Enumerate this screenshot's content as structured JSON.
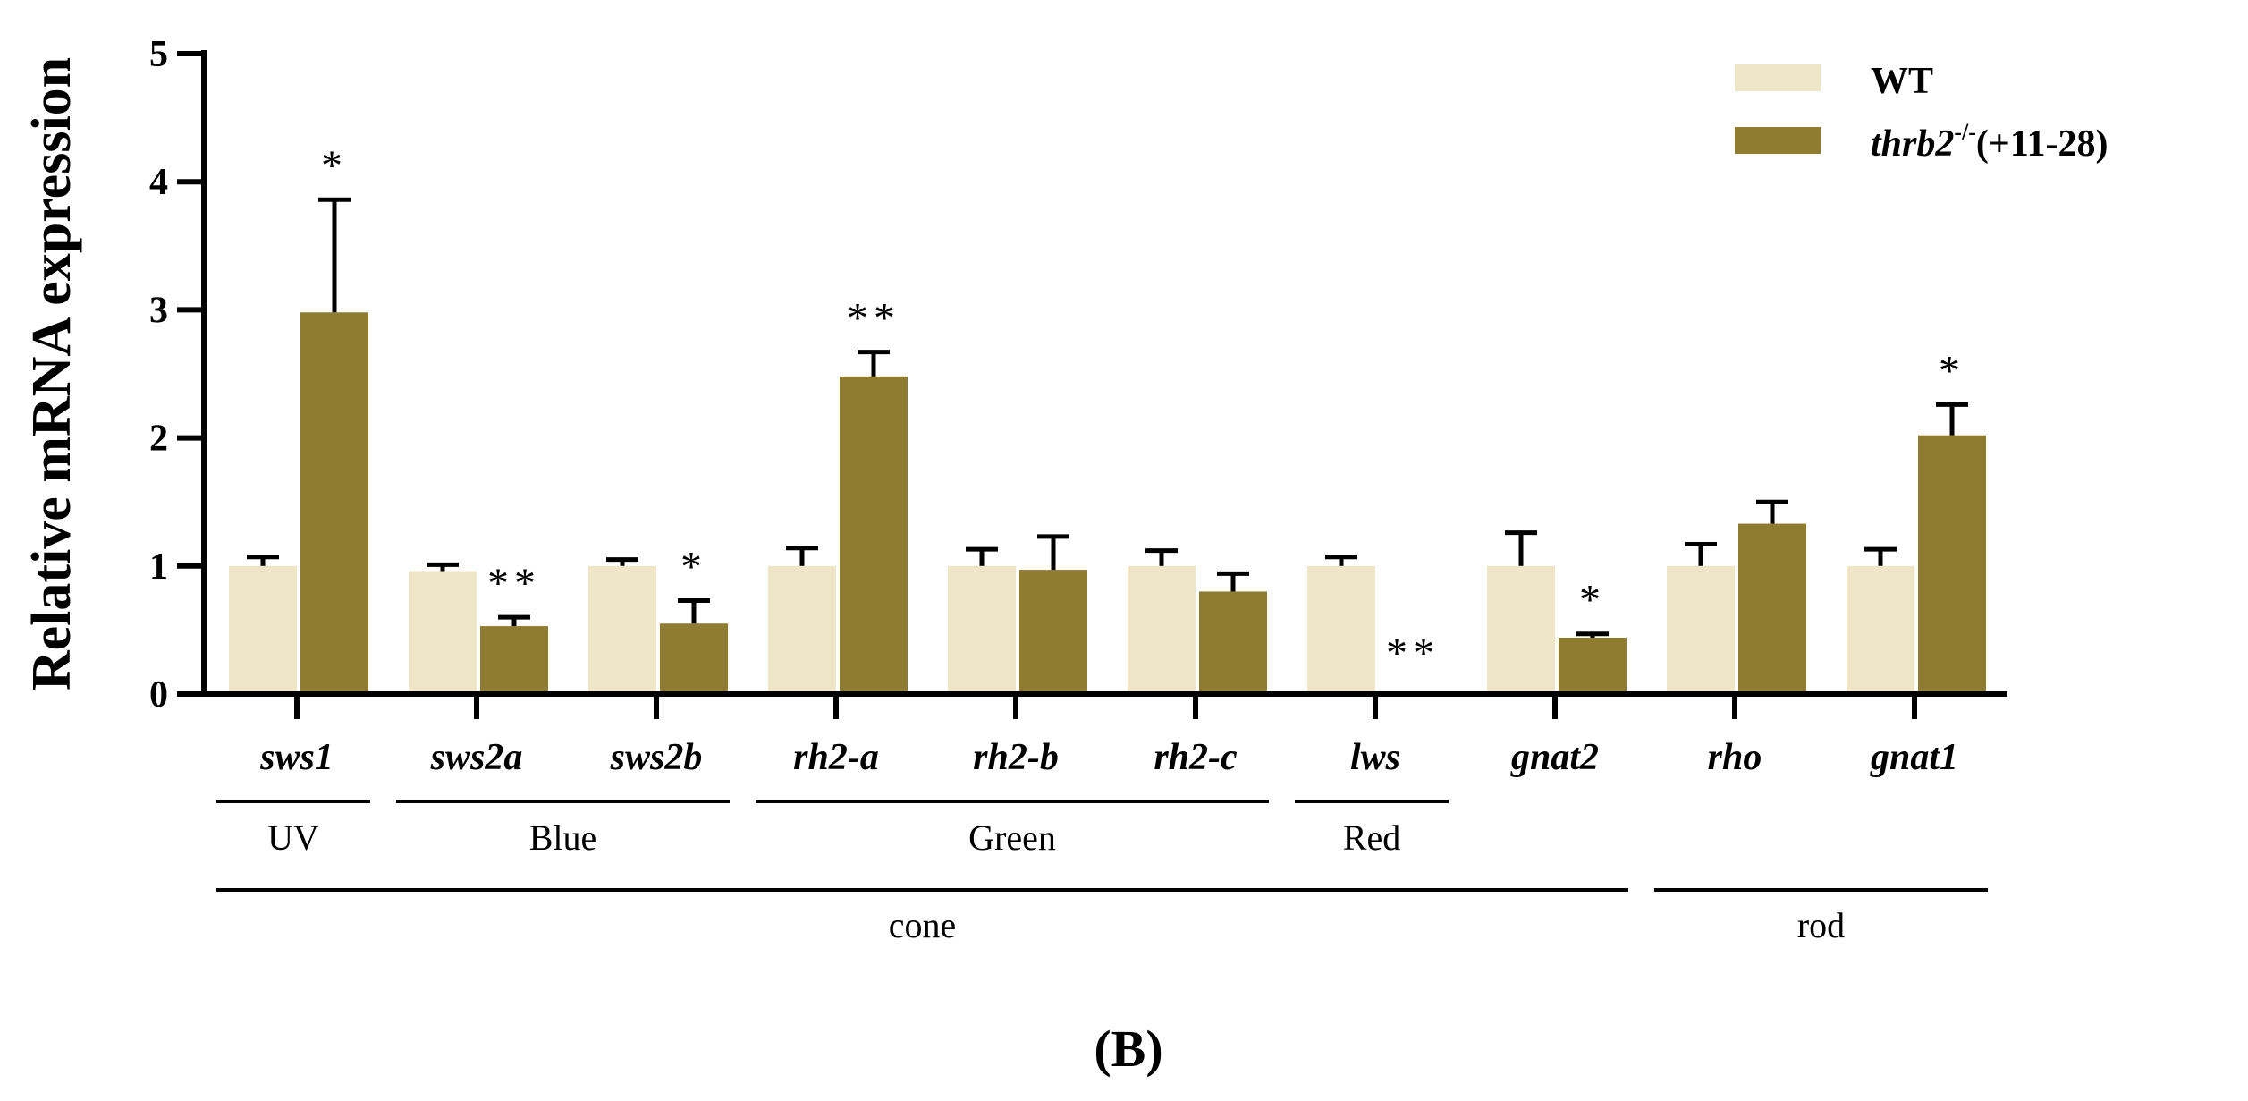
{
  "chart_data": {
    "type": "bar",
    "ylabel": "Relative mRNA expression",
    "ylim": [
      0,
      5
    ],
    "yticks": [
      "0",
      "1",
      "2",
      "3",
      "4",
      "5"
    ],
    "categories": [
      "sws1",
      "sws2a",
      "sws2b",
      "rh2-a",
      "rh2-b",
      "rh2-c",
      "lws",
      "gnat2",
      "rho",
      "gnat1"
    ],
    "series": [
      {
        "name": "WT",
        "color": "#efe6c8",
        "values": [
          1.0,
          0.96,
          1.0,
          1.0,
          1.0,
          1.0,
          1.0,
          1.0,
          1.0,
          1.0
        ],
        "errors": [
          0.07,
          0.05,
          0.05,
          0.14,
          0.13,
          0.12,
          0.07,
          0.26,
          0.17,
          0.13
        ]
      },
      {
        "name": "thrb2",
        "name_superscript": "-/-",
        "name_suffix": "(+11-28)",
        "color": "#8f7b31",
        "values": [
          2.98,
          0.53,
          0.55,
          2.48,
          0.97,
          0.8,
          0.0,
          0.44,
          1.33,
          2.02
        ],
        "errors": [
          0.88,
          0.07,
          0.18,
          0.19,
          0.26,
          0.14,
          0.0,
          0.03,
          0.17,
          0.24
        ]
      }
    ],
    "significance": [
      "*",
      "**",
      "*",
      "**",
      "",
      "",
      "**",
      "*",
      "",
      "*"
    ],
    "opsin_groups": [
      {
        "label": "UV",
        "from": 0,
        "to": 0
      },
      {
        "label": "Blue",
        "from": 1,
        "to": 2
      },
      {
        "label": "Green",
        "from": 3,
        "to": 5
      },
      {
        "label": "Red",
        "from": 6,
        "to": 6
      }
    ],
    "cell_groups": [
      {
        "label": "cone",
        "from": 0,
        "to": 7
      },
      {
        "label": "rod",
        "from": 8,
        "to": 9
      }
    ],
    "legend_position": "top-right",
    "panel_label": "(B)"
  }
}
